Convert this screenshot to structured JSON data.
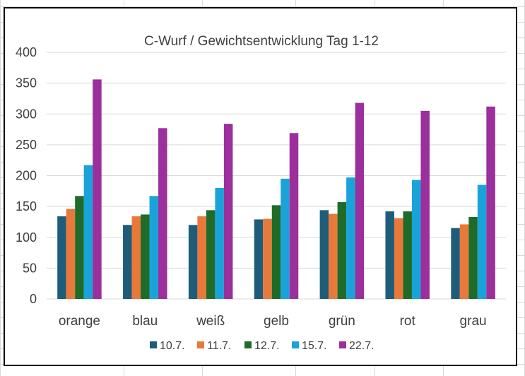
{
  "chart_data": {
    "type": "bar",
    "title": "C-Wurf / Gewichtsentwicklung Tag 1-12",
    "xlabel": "",
    "ylabel": "",
    "ylim": [
      0,
      400
    ],
    "yticks": [
      0,
      50,
      100,
      150,
      200,
      250,
      300,
      350,
      400
    ],
    "grid": true,
    "legend_position": "bottom",
    "categories": [
      "orange",
      "blau",
      "weiß",
      "gelb",
      "grün",
      "rot",
      "grau"
    ],
    "series": [
      {
        "name": "10.7.",
        "color": "#1F5C7A",
        "values": [
          134,
          120,
          120,
          129,
          144,
          142,
          115
        ]
      },
      {
        "name": "11.7.",
        "color": "#E8793A",
        "values": [
          146,
          134,
          134,
          130,
          138,
          131,
          121
        ]
      },
      {
        "name": "12.7.",
        "color": "#1E6B2A",
        "values": [
          167,
          137,
          144,
          152,
          157,
          142,
          133
        ]
      },
      {
        "name": "15.7.",
        "color": "#1AA3D9",
        "values": [
          217,
          167,
          180,
          195,
          197,
          193,
          185
        ]
      },
      {
        "name": "22.7.",
        "color": "#9B2F9B",
        "values": [
          356,
          277,
          284,
          269,
          318,
          305,
          312
        ]
      }
    ]
  }
}
